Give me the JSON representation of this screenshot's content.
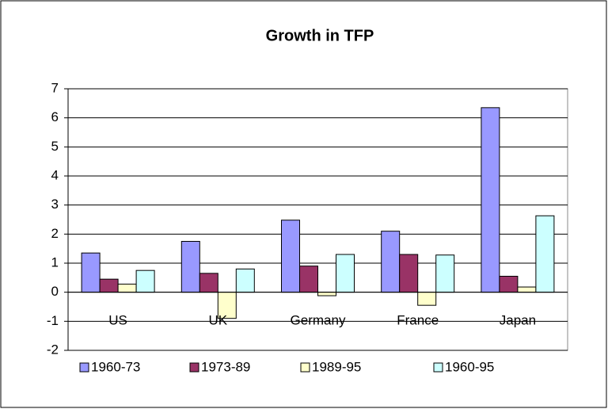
{
  "chart_data": {
    "type": "bar",
    "title": "Growth in TFP",
    "categories": [
      "US",
      "UK",
      "Germany",
      "France",
      "Japan"
    ],
    "series": [
      {
        "name": "1960-73",
        "color": "#9999ff",
        "values": [
          1.35,
          1.75,
          2.48,
          2.1,
          6.35
        ]
      },
      {
        "name": "1973-89",
        "color": "#993366",
        "values": [
          0.45,
          0.65,
          0.9,
          1.3,
          0.55
        ]
      },
      {
        "name": "1989-95",
        "color": "#ffffcc",
        "values": [
          0.28,
          -0.9,
          -0.12,
          -0.45,
          0.18
        ]
      },
      {
        "name": "1960-95",
        "color": "#ccffff",
        "values": [
          0.75,
          0.8,
          1.3,
          1.28,
          2.63
        ]
      }
    ],
    "ylim": [
      -2,
      7
    ],
    "yticks": [
      -2,
      -1,
      0,
      1,
      2,
      3,
      4,
      5,
      6,
      7
    ],
    "grid": true,
    "legend": "bottom"
  }
}
